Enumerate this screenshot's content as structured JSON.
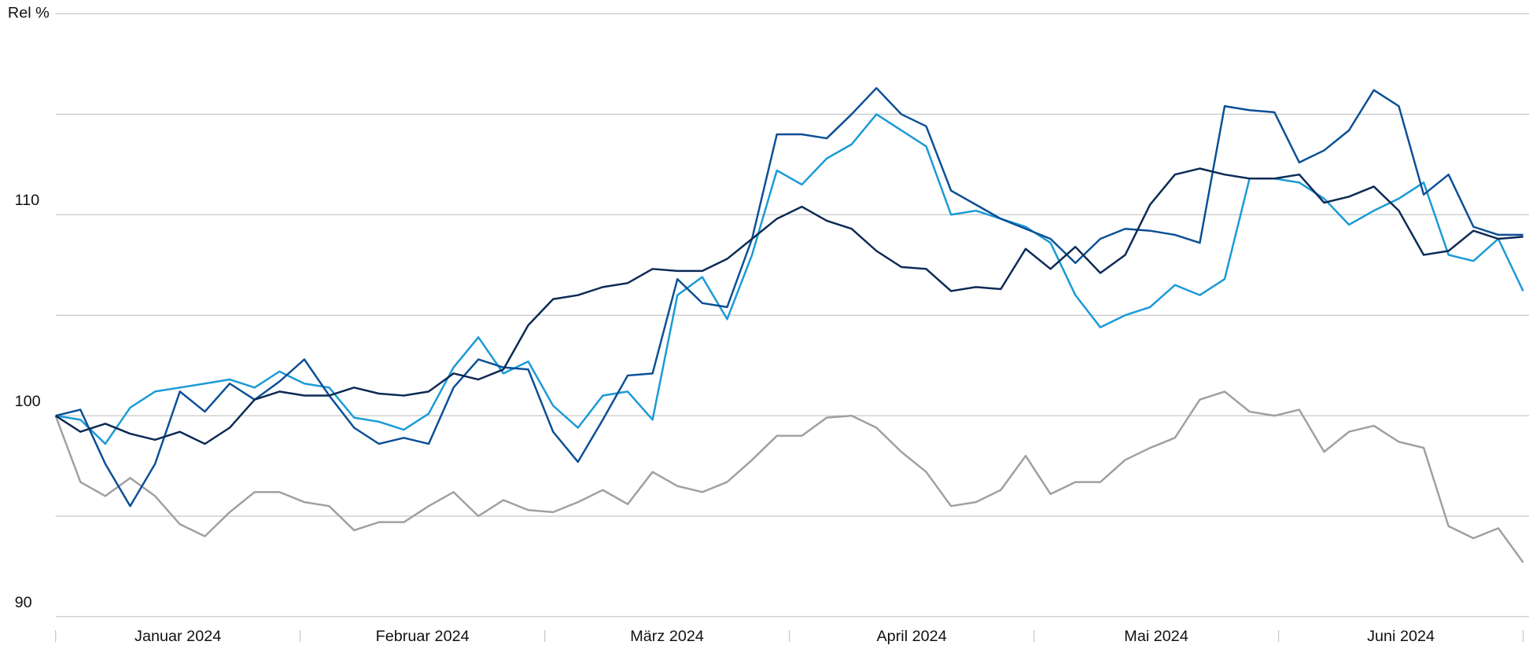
{
  "chart_data": {
    "type": "line",
    "y_label": "Rel %",
    "months": [
      "Januar 2024",
      "Februar 2024",
      "März 2024",
      "April 2024",
      "Mai 2024",
      "Juni 2024"
    ],
    "ylim": [
      90,
      120
    ],
    "yticks": [
      90,
      100,
      110
    ],
    "ygrid": [
      90,
      95,
      100,
      105,
      110,
      115,
      120
    ],
    "series": [
      {
        "color": "#a0a0a0",
        "values": [
          100,
          96.7,
          96.0,
          96.9,
          96.0,
          94.6,
          94.0,
          95.2,
          96.2,
          96.2,
          95.7,
          95.5,
          94.3,
          94.7,
          94.7,
          95.5,
          96.2,
          95.0,
          95.8,
          95.3,
          95.2,
          95.7,
          96.3,
          95.6,
          97.2,
          96.5,
          96.2,
          96.7,
          97.8,
          99.0,
          99.0,
          99.9,
          100.0,
          99.4,
          98.2,
          97.2,
          95.5,
          95.7,
          96.3,
          98.0,
          96.1,
          96.7,
          96.7,
          97.8,
          98.4,
          98.9,
          100.8,
          101.2,
          100.2,
          100.0,
          100.3,
          98.2,
          99.2,
          99.5,
          98.7,
          98.4,
          94.5,
          93.9,
          94.4,
          92.7
        ]
      },
      {
        "color": "#1a9ad6",
        "values": [
          100,
          99.8,
          98.6,
          100.4,
          101.2,
          101.4,
          101.6,
          101.8,
          101.4,
          102.2,
          101.6,
          101.4,
          99.9,
          99.7,
          99.3,
          100.1,
          102.4,
          103.9,
          102.1,
          102.7,
          100.5,
          99.4,
          101.0,
          101.2,
          99.8,
          106.0,
          106.9,
          104.8,
          108.0,
          112.2,
          111.5,
          112.8,
          113.5,
          115.0,
          114.2,
          113.4,
          110.0,
          110.2,
          109.8,
          109.4,
          108.6,
          106.0,
          104.4,
          105.0,
          105.4,
          106.5,
          106.0,
          106.8,
          111.8,
          111.8,
          111.6,
          110.8,
          109.5,
          110.2,
          110.8,
          111.6,
          108.0,
          107.7,
          108.8,
          106.2
        ]
      },
      {
        "color": "#0b4f96",
        "values": [
          100,
          100.3,
          97.6,
          95.5,
          97.6,
          101.2,
          100.2,
          101.6,
          100.8,
          101.7,
          102.8,
          101.0,
          99.4,
          98.6,
          98.9,
          98.6,
          101.4,
          102.8,
          102.4,
          102.3,
          99.2,
          97.7,
          99.8,
          102.0,
          102.1,
          106.8,
          105.6,
          105.4,
          108.8,
          114.0,
          114.0,
          113.8,
          115.0,
          116.3,
          115.0,
          114.4,
          111.2,
          110.5,
          109.8,
          109.3,
          108.8,
          107.6,
          108.8,
          109.3,
          109.2,
          109.0,
          108.6,
          115.4,
          115.2,
          115.1,
          112.6,
          113.2,
          114.2,
          116.2,
          115.4,
          111.0,
          112.0,
          109.4,
          109.0,
          109.0
        ]
      },
      {
        "color": "#0c2a55",
        "values": [
          100,
          99.2,
          99.6,
          99.1,
          98.8,
          99.2,
          98.6,
          99.4,
          100.8,
          101.2,
          101.0,
          101.0,
          101.4,
          101.1,
          101.0,
          101.2,
          102.1,
          101.8,
          102.3,
          104.5,
          105.8,
          106.0,
          106.4,
          106.6,
          107.3,
          107.2,
          107.2,
          107.8,
          108.8,
          109.8,
          110.4,
          109.7,
          109.3,
          108.2,
          107.4,
          107.3,
          106.2,
          106.4,
          106.3,
          108.3,
          107.3,
          108.4,
          107.1,
          108.0,
          110.5,
          112.0,
          112.3,
          112.0,
          111.8,
          111.8,
          112.0,
          110.6,
          110.9,
          111.4,
          110.2,
          108.0,
          108.2,
          109.2,
          108.8,
          108.9
        ]
      }
    ]
  }
}
